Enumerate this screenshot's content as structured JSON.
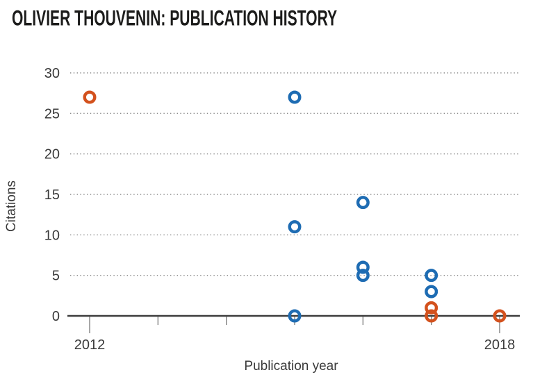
{
  "header": {
    "title": "OLIVIER THOUVENIN: PUBLICATION HISTORY"
  },
  "colors": {
    "series_blue": "#1e6cb3",
    "series_orange": "#d3511d",
    "axis_line": "#3d3d3d",
    "grid_dots": "#8a8a8a",
    "title_text": "#1c1c1b"
  },
  "chart_data": {
    "type": "scatter",
    "title": "OLIVIER THOUVENIN: PUBLICATION HISTORY",
    "xlabel": "Publication year",
    "ylabel": "Citations",
    "xlim": [
      2011.65,
      2018.3
    ],
    "ylim": [
      0,
      30
    ],
    "yticks": [
      0,
      5,
      10,
      15,
      20,
      25,
      30
    ],
    "xticks": [
      2012,
      2013,
      2014,
      2015,
      2016,
      2017,
      2018
    ],
    "xtick_labels_shown": [
      "2012",
      "2018"
    ],
    "grid": "horizontal-dotted",
    "legend": null,
    "marker": "open-circle",
    "series": [
      {
        "name": "blue",
        "color": "#1e6cb3",
        "points": [
          [
            2015,
            27
          ],
          [
            2016,
            14
          ],
          [
            2015,
            11
          ],
          [
            2016,
            6
          ],
          [
            2016,
            5
          ],
          [
            2017,
            5
          ],
          [
            2017,
            3
          ],
          [
            2015,
            0
          ]
        ]
      },
      {
        "name": "orange",
        "color": "#d3511d",
        "points": [
          [
            2012,
            27
          ],
          [
            2017,
            1
          ],
          [
            2017,
            0
          ],
          [
            2018,
            0
          ]
        ]
      }
    ]
  }
}
